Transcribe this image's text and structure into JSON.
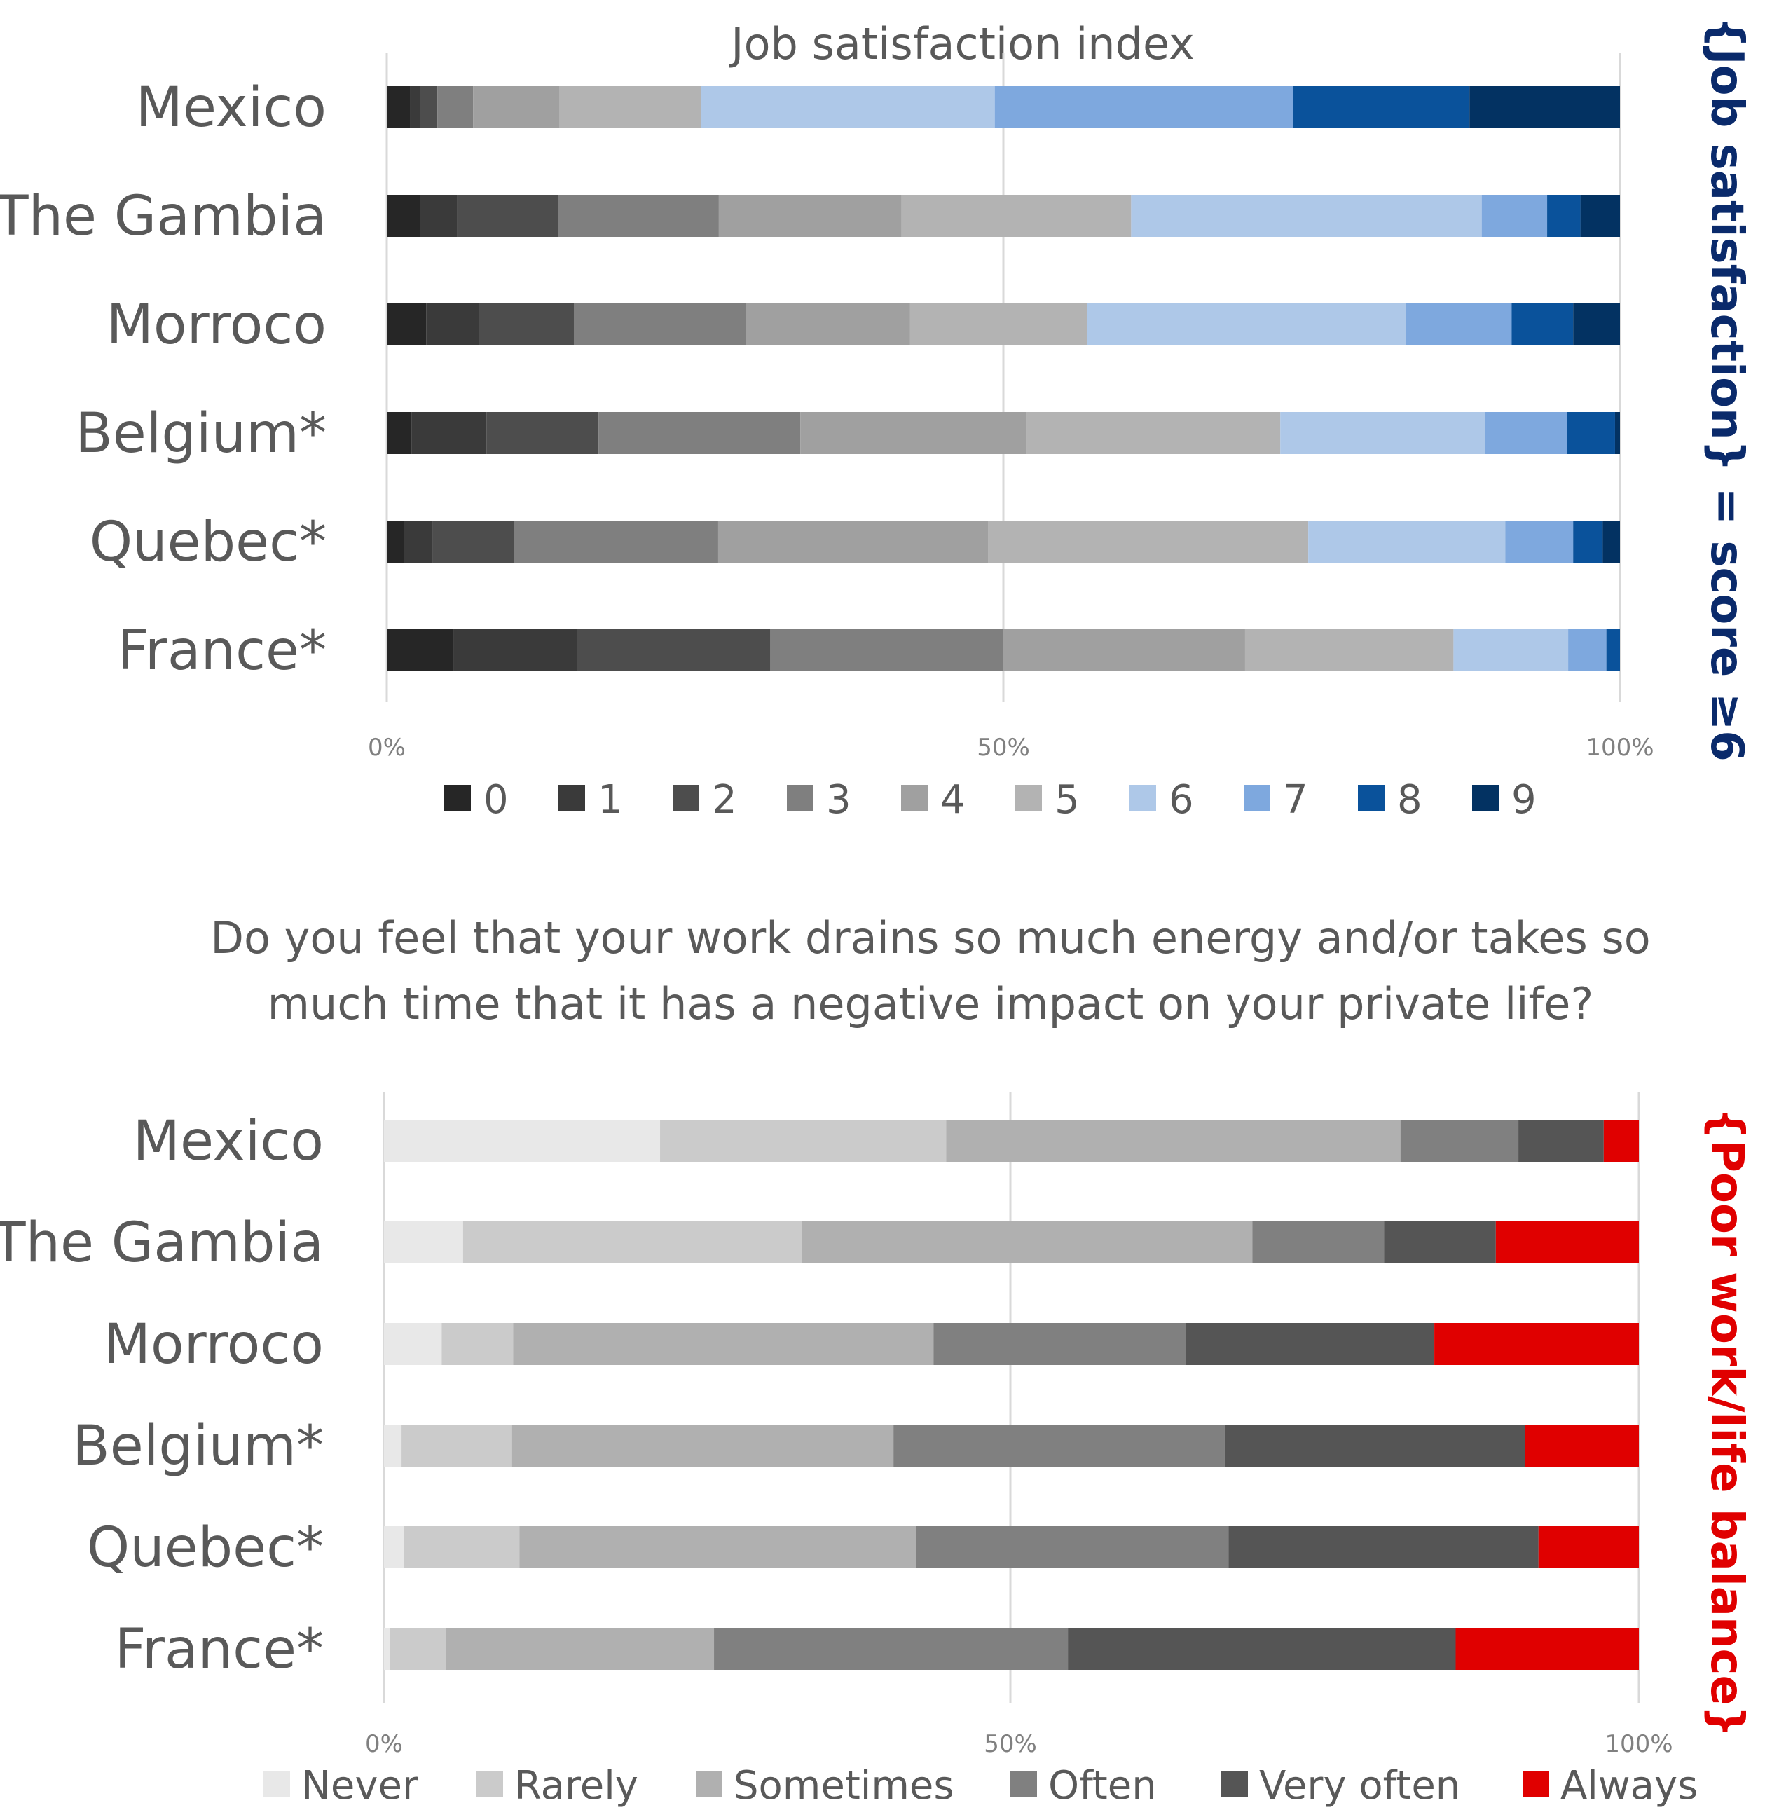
{
  "chart_data": [
    {
      "type": "bar",
      "stacked": "percent",
      "orientation": "horizontal",
      "title": "Job satisfaction index",
      "categories": [
        "Mexico",
        "The Gambia",
        "Morroco",
        "Belgium*",
        "Quebec*",
        "France*"
      ],
      "series": [
        {
          "name": "0",
          "color": "#262626",
          "values": [
            1.9,
            2.7,
            3.2,
            2.0,
            1.4,
            5.4
          ]
        },
        {
          "name": "1",
          "color": "#3a3a3a",
          "values": [
            0.8,
            3.0,
            4.3,
            6.1,
            2.3,
            10.0
          ]
        },
        {
          "name": "2",
          "color": "#4d4d4d",
          "values": [
            1.4,
            8.2,
            7.7,
            9.1,
            6.6,
            15.7
          ]
        },
        {
          "name": "3",
          "color": "#7f7f7f",
          "values": [
            2.9,
            13.0,
            14.0,
            16.4,
            16.6,
            18.9
          ]
        },
        {
          "name": "4",
          "color": "#a0a0a0",
          "values": [
            7.0,
            14.8,
            13.3,
            18.4,
            21.9,
            19.6
          ]
        },
        {
          "name": "5",
          "color": "#b3b3b3",
          "values": [
            11.5,
            18.6,
            14.4,
            20.6,
            26.0,
            16.9
          ]
        },
        {
          "name": "6",
          "color": "#aec8e8",
          "values": [
            23.8,
            28.4,
            25.9,
            16.6,
            16.0,
            9.3
          ]
        },
        {
          "name": "7",
          "color": "#7ea8de",
          "values": [
            24.2,
            5.3,
            8.6,
            6.7,
            5.5,
            3.1
          ]
        },
        {
          "name": "8",
          "color": "#0a529b",
          "values": [
            14.3,
            2.7,
            5.0,
            3.9,
            2.4,
            1.1
          ]
        },
        {
          "name": "9",
          "color": "#033262",
          "values": [
            12.2,
            3.2,
            3.8,
            0.4,
            1.4,
            0.0
          ]
        }
      ],
      "xticks": [
        "0%",
        "50%",
        "100%"
      ],
      "xlim": [
        0,
        100
      ],
      "side_label": "{Job satisfaction} = score ≥6",
      "side_label_color": "#0a2a6b",
      "legend": "bottom"
    },
    {
      "type": "bar",
      "stacked": "percent",
      "orientation": "horizontal",
      "title_lines": [
        "Do you feel that your work drains so much energy and/or takes so",
        "much time that it has a negative impact on your private life?"
      ],
      "categories": [
        "Mexico",
        "The Gambia",
        "Morroco",
        "Belgium*",
        "Quebec*",
        "France*"
      ],
      "series": [
        {
          "name": "Never",
          "color": "#e8e8e8",
          "values": [
            22.0,
            6.3,
            4.6,
            1.4,
            1.6,
            0.5
          ]
        },
        {
          "name": "Rarely",
          "color": "#cbcbcb",
          "values": [
            22.8,
            27.0,
            5.7,
            8.8,
            9.2,
            4.4
          ]
        },
        {
          "name": "Sometimes",
          "color": "#b0b0b0",
          "values": [
            36.2,
            35.9,
            33.5,
            30.4,
            31.6,
            21.4
          ]
        },
        {
          "name": "Often",
          "color": "#808080",
          "values": [
            9.4,
            10.5,
            20.1,
            26.4,
            24.9,
            28.2
          ]
        },
        {
          "name": "Very often",
          "color": "#555555",
          "values": [
            6.8,
            8.9,
            19.8,
            23.9,
            24.7,
            30.9
          ]
        },
        {
          "name": "Always",
          "color": "#e00000",
          "values": [
            2.8,
            11.4,
            16.3,
            9.1,
            8.0,
            14.6
          ]
        }
      ],
      "xticks": [
        "0%",
        "50%",
        "100%"
      ],
      "xlim": [
        0,
        100
      ],
      "side_label": "{Poor work/life balance}",
      "side_label_color": "#e00000",
      "legend": "bottom"
    }
  ]
}
